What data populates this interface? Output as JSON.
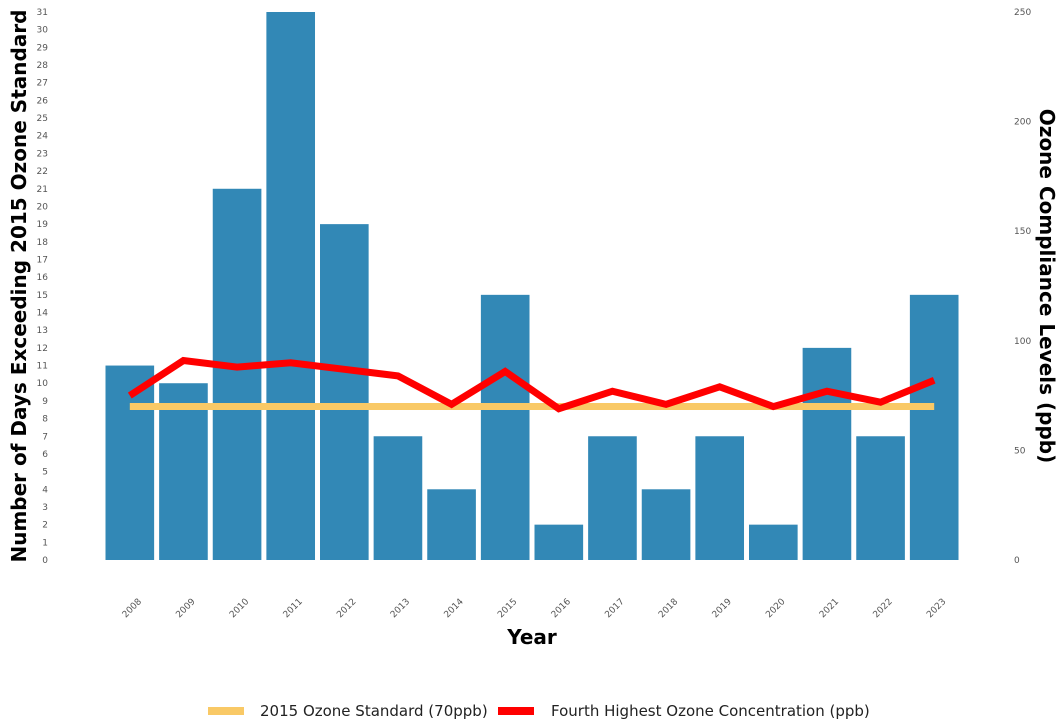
{
  "chart_data": {
    "type": "bar",
    "categories": [
      "2008",
      "2009",
      "2010",
      "2011",
      "2012",
      "2013",
      "2014",
      "2015",
      "2016",
      "2017",
      "2018",
      "2019",
      "2020",
      "2021",
      "2022",
      "2023"
    ],
    "series": [
      {
        "name": "",
        "type": "bar",
        "axis": "left",
        "values": [
          11,
          10,
          21,
          31,
          19,
          7,
          4,
          15,
          2,
          7,
          4,
          7,
          2,
          12,
          7,
          15
        ]
      },
      {
        "name": "2015 Ozone Standard (70ppb)",
        "type": "line",
        "axis": "right",
        "values": [
          70,
          70,
          70,
          70,
          70,
          70,
          70,
          70,
          70,
          70,
          70,
          70,
          70,
          70,
          70,
          70
        ]
      },
      {
        "name": "Fourth Highest Ozone Concentration (ppb)",
        "type": "line",
        "axis": "right",
        "values": [
          75,
          91,
          88,
          90,
          87,
          84,
          71,
          86,
          69,
          77,
          71,
          79,
          70,
          77,
          72,
          82
        ]
      }
    ],
    "xlabel": "Year",
    "ylabel": "Number of Days Exceeding 2015 Ozone Standard",
    "y2label": "Ozone Compliance Levels (ppb)",
    "ylim": [
      0,
      31
    ],
    "y2lim": [
      0,
      250
    ],
    "y_ticks": [
      0,
      1,
      2,
      3,
      4,
      5,
      6,
      7,
      8,
      9,
      10,
      11,
      12,
      13,
      14,
      15,
      16,
      17,
      18,
      19,
      20,
      21,
      22,
      23,
      24,
      25,
      26,
      27,
      28,
      29,
      30,
      31
    ],
    "y2_ticks": [
      0,
      50,
      100,
      150,
      200,
      250
    ],
    "grid": false,
    "legend_position": "bottom",
    "colors": {
      "bars": "#3288b6",
      "standard": "#f9c966",
      "concentration": "#ff0000"
    }
  }
}
